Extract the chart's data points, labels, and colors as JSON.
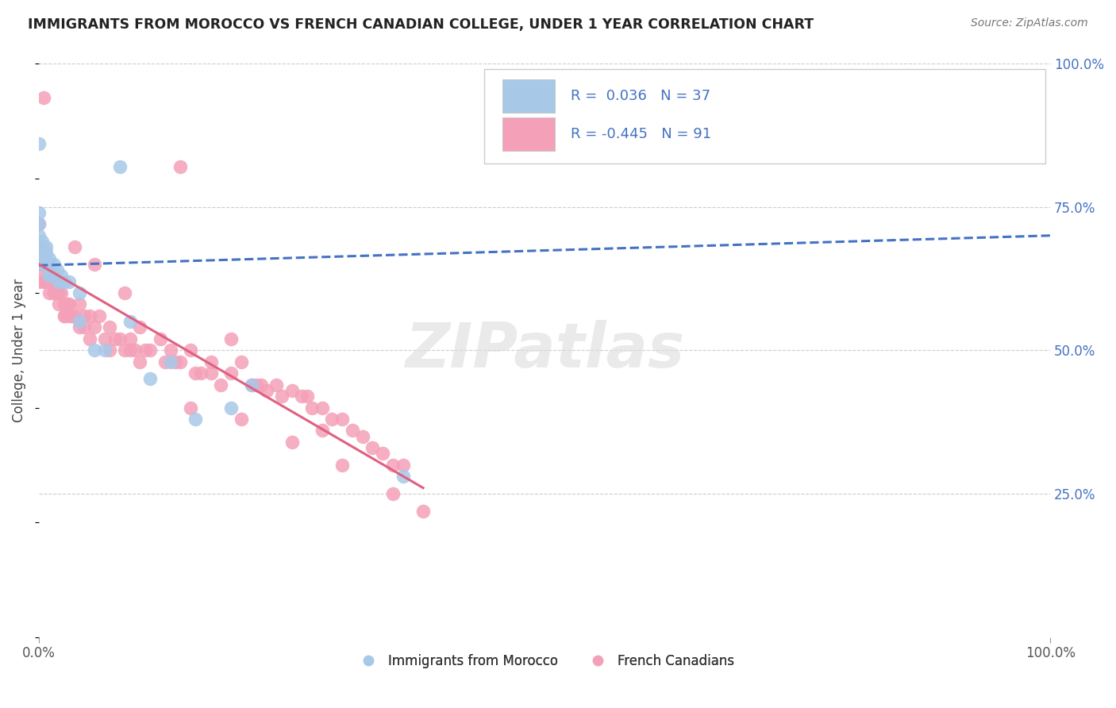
{
  "title": "IMMIGRANTS FROM MOROCCO VS FRENCH CANADIAN COLLEGE, UNDER 1 YEAR CORRELATION CHART",
  "source": "Source: ZipAtlas.com",
  "ylabel": "College, Under 1 year",
  "xlim": [
    0.0,
    1.0
  ],
  "ylim": [
    0.0,
    1.0
  ],
  "grid_color": "#cccccc",
  "background_color": "#ffffff",
  "watermark_text": "ZIPatlas",
  "blue_color": "#a8c8e8",
  "pink_color": "#f4a0b8",
  "blue_line_color": "#4472c4",
  "pink_line_color": "#e06080",
  "blue_scatter_x": [
    0.0,
    0.0,
    0.0,
    0.0,
    0.0,
    0.0,
    0.003,
    0.003,
    0.005,
    0.005,
    0.007,
    0.007,
    0.007,
    0.01,
    0.01,
    0.01,
    0.012,
    0.012,
    0.015,
    0.015,
    0.018,
    0.02,
    0.022,
    0.025,
    0.03,
    0.04,
    0.04,
    0.055,
    0.065,
    0.08,
    0.09,
    0.11,
    0.13,
    0.155,
    0.19,
    0.21,
    0.36
  ],
  "blue_scatter_y": [
    0.86,
    0.74,
    0.72,
    0.7,
    0.68,
    0.65,
    0.69,
    0.67,
    0.68,
    0.66,
    0.68,
    0.67,
    0.65,
    0.66,
    0.65,
    0.63,
    0.65,
    0.63,
    0.65,
    0.63,
    0.64,
    0.62,
    0.63,
    0.62,
    0.62,
    0.6,
    0.55,
    0.5,
    0.5,
    0.82,
    0.55,
    0.45,
    0.48,
    0.38,
    0.4,
    0.44,
    0.28
  ],
  "pink_scatter_x": [
    0.0,
    0.0,
    0.0,
    0.0,
    0.005,
    0.005,
    0.008,
    0.01,
    0.01,
    0.015,
    0.015,
    0.018,
    0.02,
    0.02,
    0.022,
    0.025,
    0.025,
    0.028,
    0.03,
    0.03,
    0.032,
    0.035,
    0.04,
    0.04,
    0.045,
    0.05,
    0.05,
    0.055,
    0.06,
    0.065,
    0.07,
    0.07,
    0.075,
    0.08,
    0.085,
    0.09,
    0.095,
    0.1,
    0.105,
    0.11,
    0.12,
    0.125,
    0.13,
    0.135,
    0.14,
    0.15,
    0.155,
    0.16,
    0.17,
    0.18,
    0.19,
    0.2,
    0.21,
    0.215,
    0.22,
    0.225,
    0.235,
    0.24,
    0.25,
    0.26,
    0.27,
    0.28,
    0.29,
    0.3,
    0.31,
    0.32,
    0.33,
    0.34,
    0.35,
    0.36,
    0.265,
    0.17,
    0.09,
    0.045,
    0.025,
    0.1,
    0.15,
    0.2,
    0.25,
    0.3,
    0.35,
    0.38,
    0.28,
    0.19,
    0.14,
    0.085,
    0.055,
    0.035,
    0.015,
    0.01,
    0.005
  ],
  "pink_scatter_y": [
    0.72,
    0.68,
    0.65,
    0.62,
    0.64,
    0.62,
    0.62,
    0.64,
    0.6,
    0.62,
    0.6,
    0.6,
    0.6,
    0.58,
    0.6,
    0.58,
    0.56,
    0.58,
    0.58,
    0.56,
    0.56,
    0.56,
    0.58,
    0.54,
    0.56,
    0.56,
    0.52,
    0.54,
    0.56,
    0.52,
    0.54,
    0.5,
    0.52,
    0.52,
    0.5,
    0.52,
    0.5,
    0.54,
    0.5,
    0.5,
    0.52,
    0.48,
    0.5,
    0.48,
    0.48,
    0.5,
    0.46,
    0.46,
    0.48,
    0.44,
    0.46,
    0.48,
    0.44,
    0.44,
    0.44,
    0.43,
    0.44,
    0.42,
    0.43,
    0.42,
    0.4,
    0.4,
    0.38,
    0.38,
    0.36,
    0.35,
    0.33,
    0.32,
    0.3,
    0.3,
    0.42,
    0.46,
    0.5,
    0.54,
    0.56,
    0.48,
    0.4,
    0.38,
    0.34,
    0.3,
    0.25,
    0.22,
    0.36,
    0.52,
    0.82,
    0.6,
    0.65,
    0.68,
    0.6,
    0.62,
    0.94
  ],
  "blue_trend_x0": 0.0,
  "blue_trend_x1": 1.0,
  "blue_trend_y0": 0.648,
  "blue_trend_y1": 0.7,
  "pink_trend_x0": 0.0,
  "pink_trend_x1": 0.38,
  "pink_trend_y0": 0.65,
  "pink_trend_y1": 0.26,
  "legend_items": [
    {
      "color": "#a8c8e8",
      "r_text": "R =  0.036",
      "n_text": "N = 37"
    },
    {
      "color": "#f4a0b8",
      "r_text": "R = -0.445",
      "n_text": "N = 91"
    }
  ],
  "x_tick_labels": [
    "0.0%",
    "100.0%"
  ],
  "x_tick_pos": [
    0.0,
    1.0
  ],
  "right_ytick_pos": [
    0.25,
    0.5,
    0.75,
    1.0
  ],
  "right_ytick_labels": [
    "25.0%",
    "50.0%",
    "75.0%",
    "100.0%"
  ]
}
